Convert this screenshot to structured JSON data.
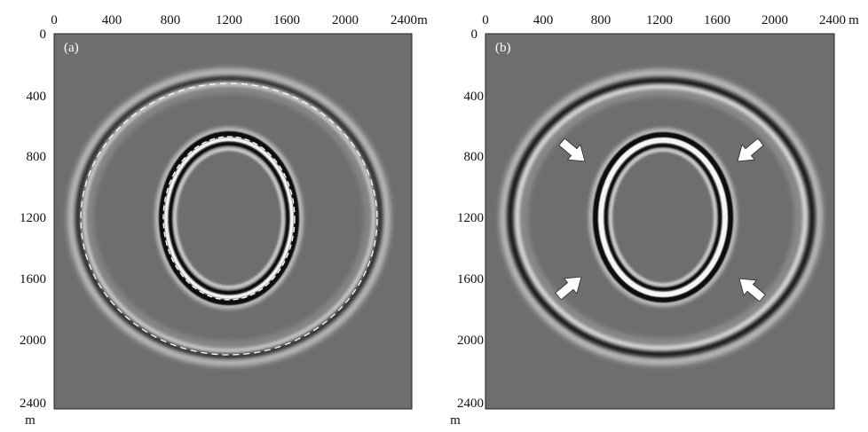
{
  "panels": [
    {
      "id": "a",
      "label": "(a)",
      "x_ticks": [
        "0",
        "400",
        "800",
        "1200",
        "1600",
        "2000",
        "2400"
      ],
      "x_unit": "m",
      "y_ticks": [
        "0",
        "400",
        "800",
        "1200",
        "1600",
        "2000",
        "2400"
      ],
      "y_unit": "m",
      "background": "#6e6e6e",
      "has_dashed_overlay": true,
      "arrow_count": 0
    },
    {
      "id": "b",
      "label": "(b)",
      "x_ticks": [
        "0",
        "400",
        "800",
        "1200",
        "1600",
        "2000",
        "2400"
      ],
      "x_unit": "m",
      "y_ticks": [
        "0",
        "400",
        "800",
        "1200",
        "1600",
        "2000",
        "2400"
      ],
      "y_unit": "m",
      "background": "#6e6e6e",
      "has_dashed_overlay": false,
      "arrow_count": 4
    }
  ],
  "axis_range_m": [
    0,
    2400
  ],
  "colors": {
    "panel_gray": "#6e6e6e",
    "dark_band": "#0a0a0a",
    "light_band": "#f2f2f2",
    "dashed_line": "#ffffff",
    "arrow_fill": "#ffffff"
  }
}
